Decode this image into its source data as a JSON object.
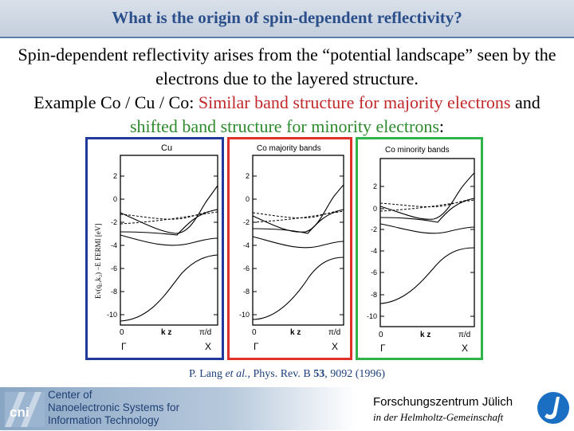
{
  "title": "What is the origin of spin-dependent reflectivity?",
  "body": {
    "line1": "Spin-dependent reflectivity arises from the “potential landscape” seen by the electrons due to the layered structure.",
    "line2_prefix": "Example Co / Cu / Co: ",
    "line2_red": "Similar band structure for majority electrons",
    "line2_mid": " and",
    "line2_green": "shifted band structure for minority electrons",
    "line2_suffix": ":"
  },
  "colors": {
    "title": "#2a4f8a",
    "red": "#c0282a",
    "green": "#2e8a2e",
    "blue_frame": "#1f3a9c",
    "red_frame": "#e0302a",
    "green_frame": "#2fb34a"
  },
  "panels": [
    {
      "frame_color": "#1f3a9c",
      "label": "Cu",
      "y_axis_label": "Eν(q₁,k₂) −E FERMI [eV]",
      "yticks": [
        "2",
        "0",
        "-2",
        "-4",
        "-6",
        "-8",
        "-10"
      ],
      "x_left": "0",
      "x_mid": "k z",
      "x_right": "π/d",
      "sym_left": "Γ",
      "sym_right": "X"
    },
    {
      "frame_color": "#e0302a",
      "label": "Co majority bands",
      "yticks": [
        "2",
        "0",
        "-2",
        "-4",
        "-6",
        "-8",
        "-10"
      ],
      "x_left": "0",
      "x_mid": "k z",
      "x_right": "π/d",
      "sym_left": "Γ",
      "sym_right": "X"
    },
    {
      "frame_color": "#2fb34a",
      "label": "Co minority bands",
      "yticks": [
        "2",
        "0",
        "-2",
        "-4",
        "-6",
        "-8",
        "-10"
      ],
      "x_left": "0",
      "x_mid": "k z",
      "x_right": "π/d",
      "sym_left": "Γ",
      "sym_right": "X"
    }
  ],
  "citation": {
    "prefix": "P. Lang ",
    "etal": "et al.",
    "mid": ", Phys. Rev. B ",
    "volume": "53",
    "suffix": ", 9092 (1996)"
  },
  "footer": {
    "logo_text": "cni",
    "center_line1": "Center of",
    "center_line2": "Nanoelectronic Systems for",
    "center_line3": "Information Technology",
    "fz_name": "Forschungszentrum Jülich",
    "fz_sub": "in der Helmholtz-Gemeinschaft"
  }
}
